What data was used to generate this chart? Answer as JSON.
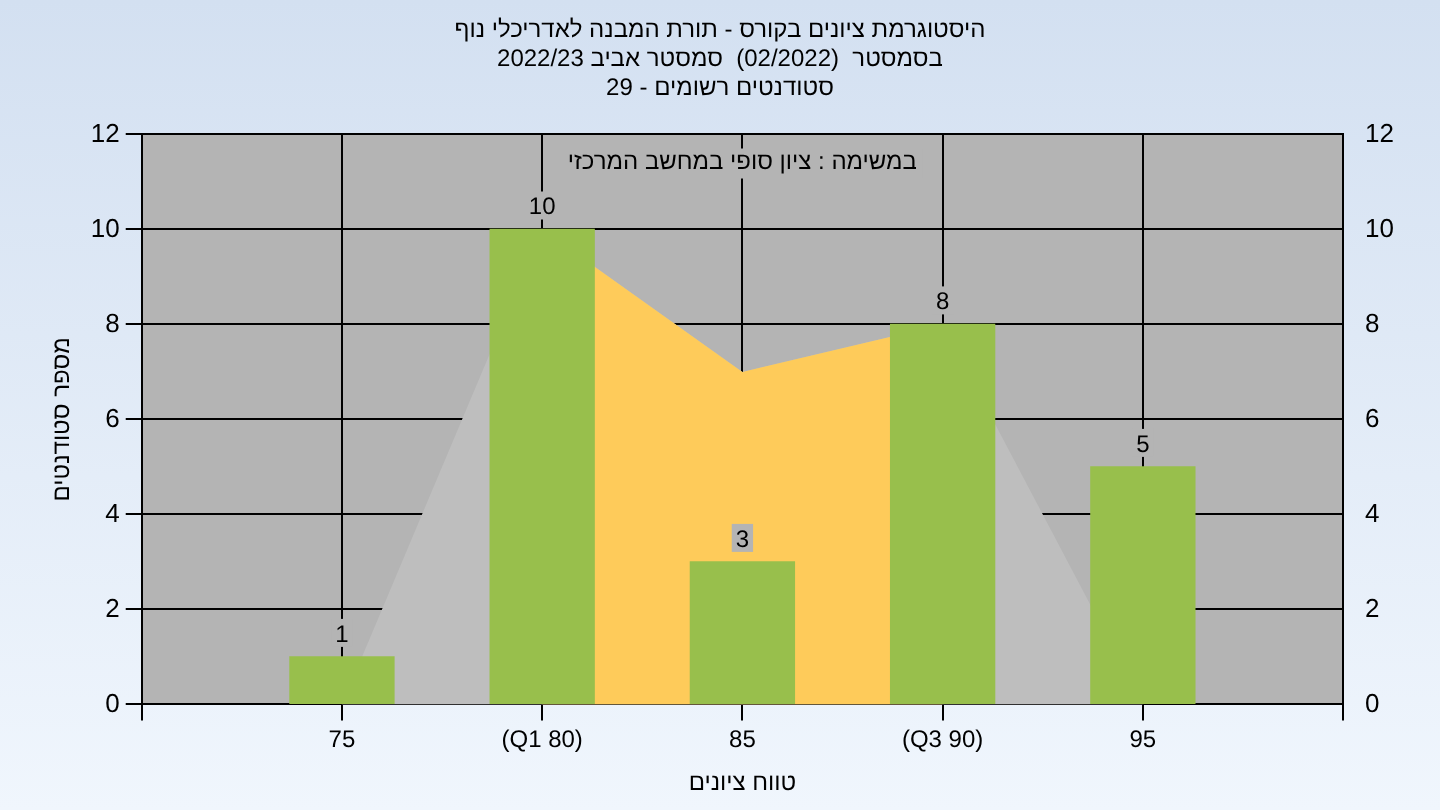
{
  "chart_data": {
    "type": "bar",
    "title": "היסטוגרמת ציונים בקורס - תורת המבנה לאדריכלי נוף",
    "subtitle": "בסמסטר  (02/2022)  סמסטר אביב 2022/23\nסטודנטים רשומים - 29",
    "xlabel": "טווח ציונים",
    "ylabel": "מספר סטודנטים",
    "annotations": [
      "במשימה : ציון סופי במחשב המרכזי"
    ],
    "categories": [
      null,
      "75",
      "(Q1 80)",
      "85",
      "(Q3 90)",
      "95",
      null
    ],
    "series": [
      {
        "type": "area",
        "color": "#bebebe",
        "values": [
          null,
          0,
          10,
          7,
          8,
          0,
          null
        ]
      },
      {
        "type": "area",
        "color": "#fecb5a",
        "values": [
          null,
          null,
          10,
          7,
          8,
          null,
          null
        ]
      },
      {
        "color": "#98bf4c",
        "values": [
          null,
          1,
          10,
          3,
          8,
          5,
          null
        ],
        "value_labels": [
          null,
          "1",
          "10",
          "3",
          "8",
          "5",
          null
        ]
      }
    ],
    "ylim": [
      0,
      12
    ],
    "yticks": [
      0,
      2,
      4,
      6,
      8,
      10,
      12
    ],
    "y2lim": [
      0,
      12
    ],
    "y2ticks": [
      0,
      2,
      4,
      6,
      8,
      10,
      12
    ],
    "grid": true,
    "legend": false
  }
}
